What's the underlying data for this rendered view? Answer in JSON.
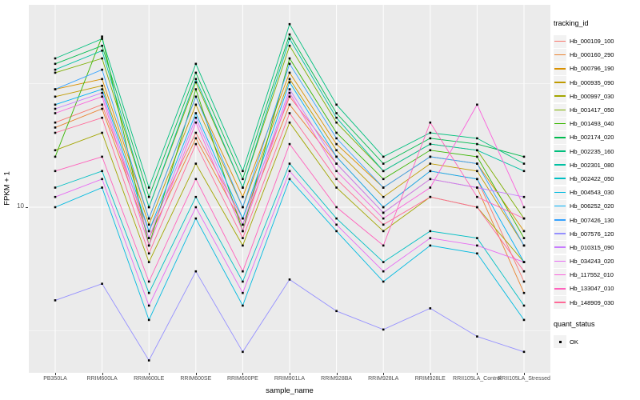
{
  "figure": {
    "y_axis_label": "FPKM + 1",
    "x_axis_label": "sample_name",
    "y_tick": "10",
    "legend": {
      "tracking_title": "tracking_id",
      "quant_title": "quant_status",
      "quant_items": [
        {
          "label": "OK"
        }
      ]
    }
  },
  "chart_data": {
    "type": "line",
    "title": "",
    "xlabel": "sample_name",
    "ylabel": "FPKM + 1",
    "y_scale": "log10",
    "y_ticks": [
      10
    ],
    "y_minor": [
      3.1623,
      31.623
    ],
    "ylim": [
      2,
      66
    ],
    "legend_position": "right",
    "panel_background": "#EBEBEB",
    "grid_color": "#FFFFFF",
    "point_color": "#000000",
    "x": [
      "PB350LA",
      "RRIM600LA",
      "RRIM600LE",
      "RRIM600SE",
      "RRIM600PE",
      "RRIM901LA",
      "RRIM928BA",
      "RRIM928LA",
      "RRIM928LE",
      "RRII105LA_Control",
      "RRII105LA_Stressed"
    ],
    "series": [
      {
        "name": "Hb_000109_100",
        "color": "#F8766D",
        "values": [
          22,
          26,
          8,
          20,
          9,
          28,
          16,
          10,
          14,
          13,
          5
        ]
      },
      {
        "name": "Hb_000160_290",
        "color": "#EA8331",
        "values": [
          21,
          25,
          7.5,
          19,
          8.5,
          26,
          15,
          9.5,
          13,
          12,
          4.5
        ]
      },
      {
        "name": "Hb_000796_190",
        "color": "#D89000",
        "values": [
          30,
          33,
          9,
          28,
          11,
          35,
          18,
          12,
          16,
          15,
          8
        ]
      },
      {
        "name": "Hb_000935_090",
        "color": "#C09B00",
        "values": [
          28,
          31,
          8.5,
          26,
          10,
          33,
          17,
          11,
          15,
          14,
          7
        ]
      },
      {
        "name": "Hb_000997_030",
        "color": "#A3A500",
        "values": [
          17,
          20,
          6,
          15,
          7,
          22,
          12,
          8,
          11,
          10,
          6
        ]
      },
      {
        "name": "Hb_001417_050",
        "color": "#7CAE00",
        "values": [
          35,
          40,
          10,
          32,
          12,
          45,
          22,
          14,
          18,
          17,
          9
        ]
      },
      {
        "name": "Hb_001493_040",
        "color": "#39B600",
        "values": [
          16,
          49,
          7,
          30,
          8,
          40,
          20,
          13,
          17,
          16,
          7.5
        ]
      },
      {
        "name": "Hb_002174_020",
        "color": "#00BB4E",
        "values": [
          38,
          45,
          11,
          35,
          13,
          50,
          24,
          15,
          19,
          18,
          16
        ]
      },
      {
        "name": "Hb_002235_160",
        "color": "#00BF7D",
        "values": [
          40,
          48,
          12,
          38,
          14,
          55,
          26,
          16,
          20,
          19,
          15
        ]
      },
      {
        "name": "Hb_002301_080",
        "color": "#00C1A3",
        "values": [
          36,
          43,
          10,
          33,
          12,
          48,
          23,
          14,
          18,
          17,
          14
        ]
      },
      {
        "name": "Hb_002422_050",
        "color": "#00BFC4",
        "values": [
          12,
          14,
          4.5,
          11,
          5,
          15,
          9,
          6,
          8,
          7.5,
          4
        ]
      },
      {
        "name": "Hb_004543_030",
        "color": "#00BAE0",
        "values": [
          10,
          12,
          3.5,
          9,
          4,
          13,
          8,
          5,
          7,
          6.5,
          3.5
        ]
      },
      {
        "name": "Hb_006252_020",
        "color": "#00B0F6",
        "values": [
          26,
          30,
          8,
          24,
          9,
          32,
          16,
          10,
          14,
          13,
          6
        ]
      },
      {
        "name": "Hb_007426_130",
        "color": "#35A2FF",
        "values": [
          30,
          36,
          9,
          28,
          10,
          38,
          19,
          12,
          16,
          15,
          7
        ]
      },
      {
        "name": "Hb_007576_120",
        "color": "#9590FF",
        "values": [
          4.2,
          4.9,
          2.4,
          5.5,
          2.6,
          5.1,
          3.8,
          3.2,
          3.9,
          3.0,
          2.6
        ]
      },
      {
        "name": "Hb_010315_090",
        "color": "#C77CFF",
        "values": [
          25,
          29,
          7.5,
          23,
          8.5,
          30,
          15,
          9.5,
          13,
          12,
          11
        ]
      },
      {
        "name": "Hb_034243_020",
        "color": "#E76BF3",
        "values": [
          11,
          13,
          4,
          10,
          4.5,
          14,
          8.5,
          5.5,
          7.5,
          7,
          6
        ]
      },
      {
        "name": "Hb_117552_010",
        "color": "#FA62DB",
        "values": [
          24,
          28,
          7,
          22,
          8,
          29,
          14,
          9,
          12,
          26,
          10
        ]
      },
      {
        "name": "Hb_133047_010",
        "color": "#FF62BC",
        "values": [
          14,
          16,
          5,
          13,
          5.5,
          18,
          10,
          7,
          22,
          11,
          9
        ]
      },
      {
        "name": "Hb_148909_030",
        "color": "#FF6A98",
        "values": [
          20,
          23,
          6.5,
          18,
          7.5,
          24,
          13,
          8.5,
          11,
          10,
          5.5
        ]
      }
    ]
  }
}
